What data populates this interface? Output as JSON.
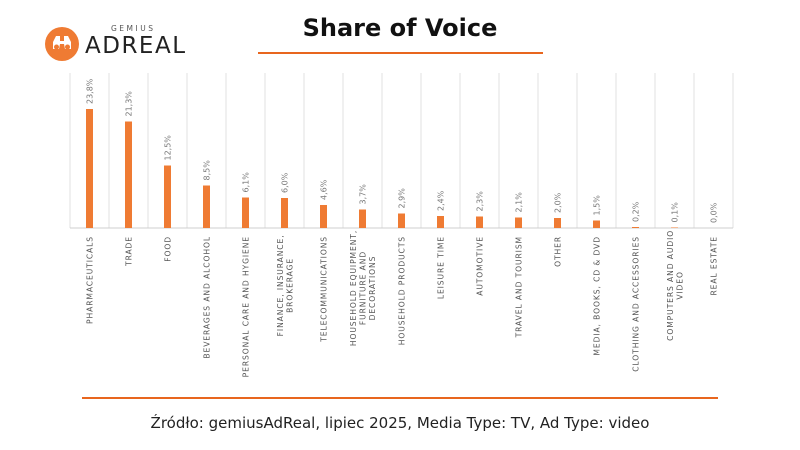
{
  "logo": {
    "small": "GEMIUS",
    "big": "ADREAL"
  },
  "source": "Źródło: gemiusAdReal, lipiec 2025, Media Type: TV, Ad Type: video",
  "colors": {
    "accent": "#e8661e",
    "bar": "#ef7b33",
    "grid": "#e0e0e0"
  },
  "chart_data": {
    "type": "bar",
    "title": "Share of Voice",
    "xlabel": "",
    "ylabel": "",
    "ylim": [
      0,
      25
    ],
    "grid": true,
    "categories": [
      [
        "PHARMACEUTICALS"
      ],
      [
        "TRADE"
      ],
      [
        "FOOD"
      ],
      [
        "BEVERAGES AND ALCOHOL"
      ],
      [
        "PERSONAL CARE AND HYGIENE"
      ],
      [
        "FINANCE, INSURANCE,",
        "BROKERAGE"
      ],
      [
        "TELECOMMUNICATIONS"
      ],
      [
        "HOUSEHOLD EQUIPMENT,",
        "FURNITURE AND",
        "DECORATIONS"
      ],
      [
        "HOUSEHOLD PRODUCTS"
      ],
      [
        "LEISURE TIME"
      ],
      [
        "AUTOMOTIVE"
      ],
      [
        "TRAVEL AND TOURISM"
      ],
      [
        "OTHER"
      ],
      [
        "MEDIA, BOOKS, CD & DVD"
      ],
      [
        "CLOTHING AND ACCESSORIES"
      ],
      [
        "COMPUTERS AND AUDIO",
        "VIDEO"
      ],
      [
        "REAL ESTATE"
      ]
    ],
    "values": [
      23.8,
      21.3,
      12.5,
      8.5,
      6.1,
      6.0,
      4.6,
      3.7,
      2.9,
      2.4,
      2.3,
      2.1,
      2.0,
      1.5,
      0.2,
      0.1,
      0.0
    ],
    "data_labels": [
      "23,8%",
      "21,3%",
      "12,5%",
      "8,5%",
      "6,1%",
      "6,0%",
      "4,6%",
      "3,7%",
      "2,9%",
      "2,4%",
      "2,3%",
      "2,1%",
      "2,0%",
      "1,5%",
      "0,2%",
      "0,1%",
      "0,0%"
    ]
  }
}
